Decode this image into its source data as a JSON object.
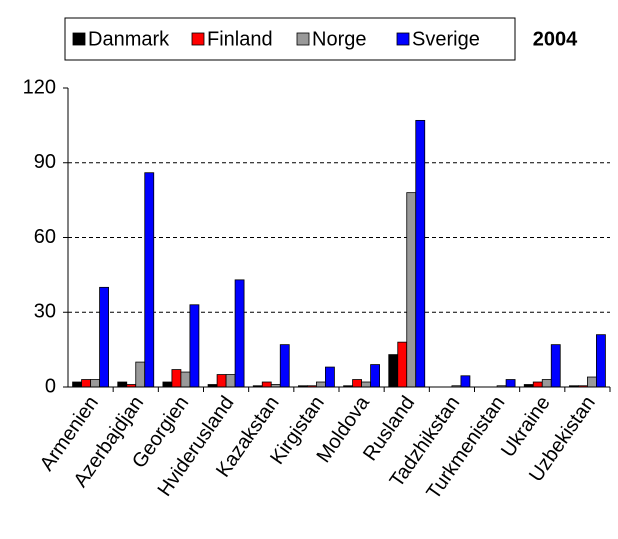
{
  "chart_data": {
    "type": "bar",
    "title": "2004",
    "categories": [
      "Armenien",
      "Azerbajdjan",
      "Georgien",
      "Hviderusland",
      "Kazakstan",
      "Kirgistan",
      "Moldova",
      "Rusland",
      "Tadzhikstan",
      "Turkmenistan",
      "Ukraine",
      "Uzbekistan"
    ],
    "series": [
      {
        "name": "Danmark",
        "color": "#000000",
        "values": [
          2,
          2,
          2,
          1,
          0.5,
          0.5,
          0.5,
          13,
          0,
          0,
          1,
          0.5
        ]
      },
      {
        "name": "Finland",
        "color": "#ff0000",
        "values": [
          3,
          1,
          7,
          5,
          2,
          0.5,
          3,
          18,
          0,
          0,
          2,
          0.5
        ]
      },
      {
        "name": "Norge",
        "color": "#999999",
        "values": [
          3,
          10,
          6,
          5,
          1,
          2,
          2,
          78,
          0.5,
          0.5,
          3,
          4
        ]
      },
      {
        "name": "Sverige",
        "color": "#0000ff",
        "values": [
          40,
          86,
          33,
          43,
          17,
          8,
          9,
          107,
          4.5,
          3,
          17,
          21
        ]
      }
    ],
    "ylim": [
      0,
      120
    ],
    "yticks": [
      0,
      30,
      60,
      90,
      120
    ],
    "grid": true
  }
}
